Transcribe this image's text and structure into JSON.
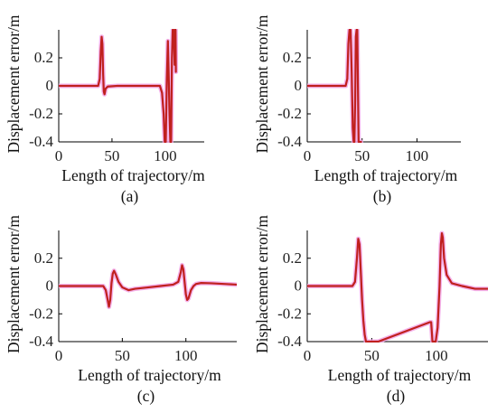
{
  "colors": {
    "line": "#c0201e",
    "glow": "#f2a6e8",
    "axis": "#000000"
  },
  "chart_data": [
    {
      "type": "line",
      "panel": "(a)",
      "xlabel": "Length of trajectory/m",
      "ylabel": "Displacement error/m",
      "xlim": [
        0,
        140
      ],
      "ylim": [
        -0.4,
        0.4
      ],
      "xticks": [
        0,
        50,
        100
      ],
      "yticks": [
        -0.4,
        -0.2,
        0,
        0.2
      ],
      "ytick_labels": [
        "-0.4",
        "-0.2",
        "0",
        "0.2"
      ],
      "series": [
        {
          "x": [
            0,
            37,
            38.5,
            39.5,
            40.3,
            41,
            41.7,
            42.3,
            43,
            44,
            46,
            55,
            70,
            85,
            95,
            97,
            98.5,
            99.5,
            100.5,
            101.5,
            102.5,
            103.2,
            104,
            104.8,
            105.5,
            106.3,
            107,
            107.7,
            108.3,
            108.8,
            109.3,
            109.7,
            110
          ],
          "y": [
            0,
            0,
            0.05,
            0.25,
            0.35,
            0.3,
            0.08,
            -0.04,
            -0.06,
            -0.02,
            -0.005,
            0,
            0,
            0,
            0,
            -0.05,
            -0.2,
            -0.4,
            -0.4,
            0.05,
            0.32,
            0.1,
            -0.2,
            -0.4,
            -0.4,
            0.2,
            0.4,
            0.4,
            0.3,
            0.15,
            0.4,
            0.4,
            0.1
          ]
        }
      ]
    },
    {
      "type": "line",
      "panel": "(b)",
      "xlabel": "Length of trajectory/m",
      "ylabel": "Displacement error/m",
      "xlim": [
        0,
        140
      ],
      "ylim": [
        -0.4,
        0.4
      ],
      "xticks": [
        0,
        50,
        100
      ],
      "yticks": [
        -0.4,
        -0.2,
        0,
        0.2
      ],
      "ytick_labels": [
        "-0.4",
        "-0.2",
        "0",
        "0.2"
      ],
      "series": [
        {
          "x": [
            0,
            35,
            36.5,
            37.5,
            38.5,
            39.5,
            40.5,
            41.5,
            42.3,
            43,
            43.7,
            44.3,
            45,
            45.6,
            46.2,
            46.8,
            47.5,
            48.2,
            49
          ],
          "y": [
            0,
            0,
            0.05,
            0.3,
            0.4,
            0.4,
            0.1,
            -0.3,
            -0.4,
            -0.4,
            -0.1,
            0.35,
            0.4,
            0.4,
            0.0,
            -0.4,
            -0.4,
            -0.4,
            -0.4
          ]
        }
      ]
    },
    {
      "type": "line",
      "panel": "(c)",
      "xlabel": "Length of trajectory/m",
      "ylabel": "Displacement error/m",
      "xlim": [
        0,
        140
      ],
      "ylim": [
        -0.4,
        0.4
      ],
      "xticks": [
        0,
        50,
        100
      ],
      "yticks": [
        -0.4,
        -0.2,
        0,
        0.2
      ],
      "ytick_labels": [
        "-0.4",
        "-0.2",
        "0",
        "0.2"
      ],
      "series": [
        {
          "x": [
            0,
            35,
            37,
            38.5,
            39.5,
            40.5,
            41.5,
            42.5,
            43.5,
            45,
            47,
            50,
            55,
            60,
            70,
            80,
            90,
            94,
            96,
            97,
            98,
            99,
            100,
            101,
            102,
            103,
            104,
            106,
            108,
            112,
            120,
            130,
            140
          ],
          "y": [
            0,
            0,
            -0.03,
            -0.1,
            -0.15,
            -0.1,
            0.02,
            0.09,
            0.11,
            0.08,
            0.03,
            -0.01,
            -0.03,
            -0.02,
            -0.01,
            0.0,
            0.01,
            0.03,
            0.1,
            0.15,
            0.12,
            0.03,
            -0.06,
            -0.1,
            -0.09,
            -0.06,
            -0.03,
            0.0,
            0.015,
            0.022,
            0.02,
            0.015,
            0.01
          ]
        }
      ]
    },
    {
      "type": "line",
      "panel": "(d)",
      "xlabel": "Length of trajectory/m",
      "ylabel": "Displacement error/m",
      "xlim": [
        0,
        140
      ],
      "ylim": [
        -0.4,
        0.4
      ],
      "xticks": [
        0,
        50,
        100
      ],
      "yticks": [
        -0.4,
        -0.2,
        0,
        0.2
      ],
      "ytick_labels": [
        "-0.4",
        "-0.2",
        "0",
        "0.2"
      ],
      "series": [
        {
          "x": [
            0,
            35,
            37,
            38.5,
            39.5,
            40.5,
            41.5,
            42.5,
            43.5,
            44.5,
            45.5,
            46.5,
            55,
            95,
            96,
            97,
            98,
            99.5,
            101,
            102.5,
            103.5,
            104.3,
            105,
            106,
            108,
            112,
            120,
            130,
            140
          ],
          "y": [
            0,
            0,
            0.03,
            0.2,
            0.34,
            0.3,
            0.1,
            -0.1,
            -0.25,
            -0.35,
            -0.4,
            -0.4,
            -0.4,
            -0.26,
            -0.26,
            -0.4,
            -0.4,
            -0.4,
            -0.3,
            0.0,
            0.3,
            0.38,
            0.35,
            0.2,
            0.08,
            0.02,
            0.0,
            -0.02,
            -0.02
          ]
        }
      ]
    }
  ]
}
